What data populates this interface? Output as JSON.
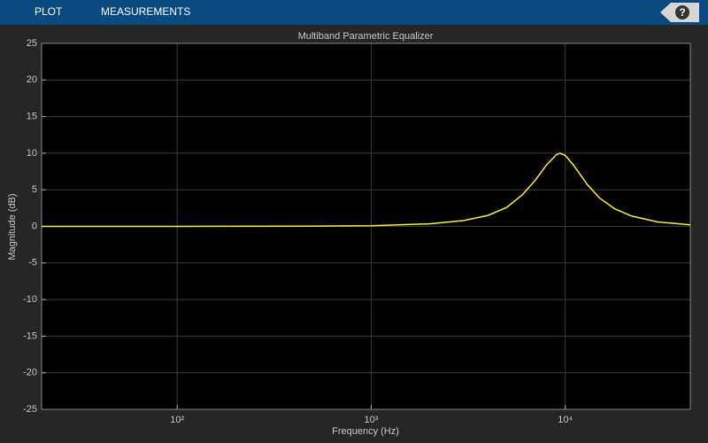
{
  "toolbar": {
    "tabs": [
      "PLOT",
      "MEASUREMENTS"
    ],
    "help": "?"
  },
  "chart_data": {
    "type": "line",
    "title": "Multiband Parametric Equalizer",
    "xlabel": "Frequency (Hz)",
    "ylabel": "Magnitude (dB)",
    "x": [
      20,
      100,
      500,
      1000,
      2000,
      3000,
      4000,
      5000,
      6000,
      7000,
      8000,
      9000,
      9400,
      10000,
      11000,
      12000,
      13000,
      15000,
      18000,
      22000,
      30000,
      44100
    ],
    "values": [
      0,
      0,
      0.02,
      0.1,
      0.35,
      0.8,
      1.5,
      2.6,
      4.3,
      6.3,
      8.4,
      9.8,
      10,
      9.7,
      8.4,
      7,
      5.7,
      3.9,
      2.4,
      1.4,
      0.6,
      0.2
    ],
    "color": "#ffee33",
    "xscale": "log",
    "xlim": [
      20,
      44100
    ],
    "xticks": [
      {
        "value": 100,
        "label": "10²"
      },
      {
        "value": 1000,
        "label": "10³"
      },
      {
        "value": 10000,
        "label": "10⁴"
      }
    ],
    "ylim": [
      -25,
      25
    ],
    "yticks": [
      -25,
      -20,
      -15,
      -10,
      -5,
      0,
      5,
      10,
      15,
      20,
      25
    ],
    "grid": true
  }
}
